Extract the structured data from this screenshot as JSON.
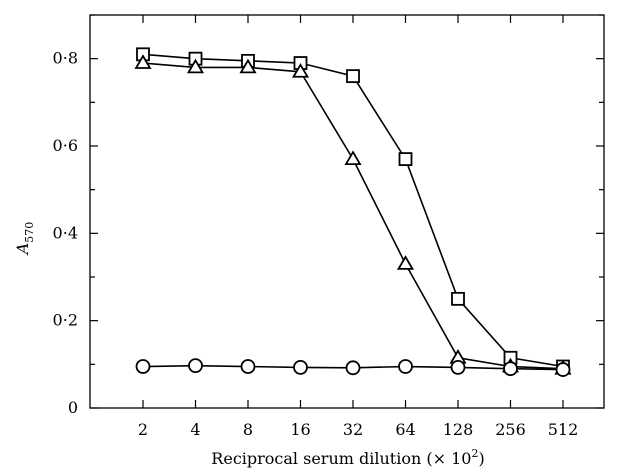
{
  "chart_data": {
    "type": "line",
    "xlabel_main": "Reciprocal serum dilution (× 10",
    "xlabel_exp": "2",
    "xlabel_close": ")",
    "ylabel_main": "A",
    "ylabel_sub": "570",
    "x": [
      2,
      4,
      8,
      16,
      32,
      64,
      128,
      256,
      512
    ],
    "x_tick_labels": [
      "2",
      "4",
      "8",
      "16",
      "32",
      "64",
      "128",
      "256",
      "512"
    ],
    "y_ticks": [
      0,
      0.2,
      0.4,
      0.6,
      0.8
    ],
    "y_tick_labels": [
      "0",
      "0·2",
      "0·4",
      "0·6",
      "0·8"
    ],
    "ylim": [
      0,
      0.9
    ],
    "x_scale": "log2",
    "grid": false,
    "series": [
      {
        "marker": "square",
        "values": [
          0.81,
          0.8,
          0.795,
          0.79,
          0.76,
          0.57,
          0.25,
          0.115,
          0.095
        ]
      },
      {
        "marker": "triangle",
        "values": [
          0.79,
          0.78,
          0.78,
          0.77,
          0.57,
          0.33,
          0.115,
          0.095,
          0.09
        ]
      },
      {
        "marker": "circle",
        "values": [
          0.095,
          0.097,
          0.095,
          0.093,
          0.092,
          0.095,
          0.093,
          0.09,
          0.088
        ]
      }
    ]
  }
}
